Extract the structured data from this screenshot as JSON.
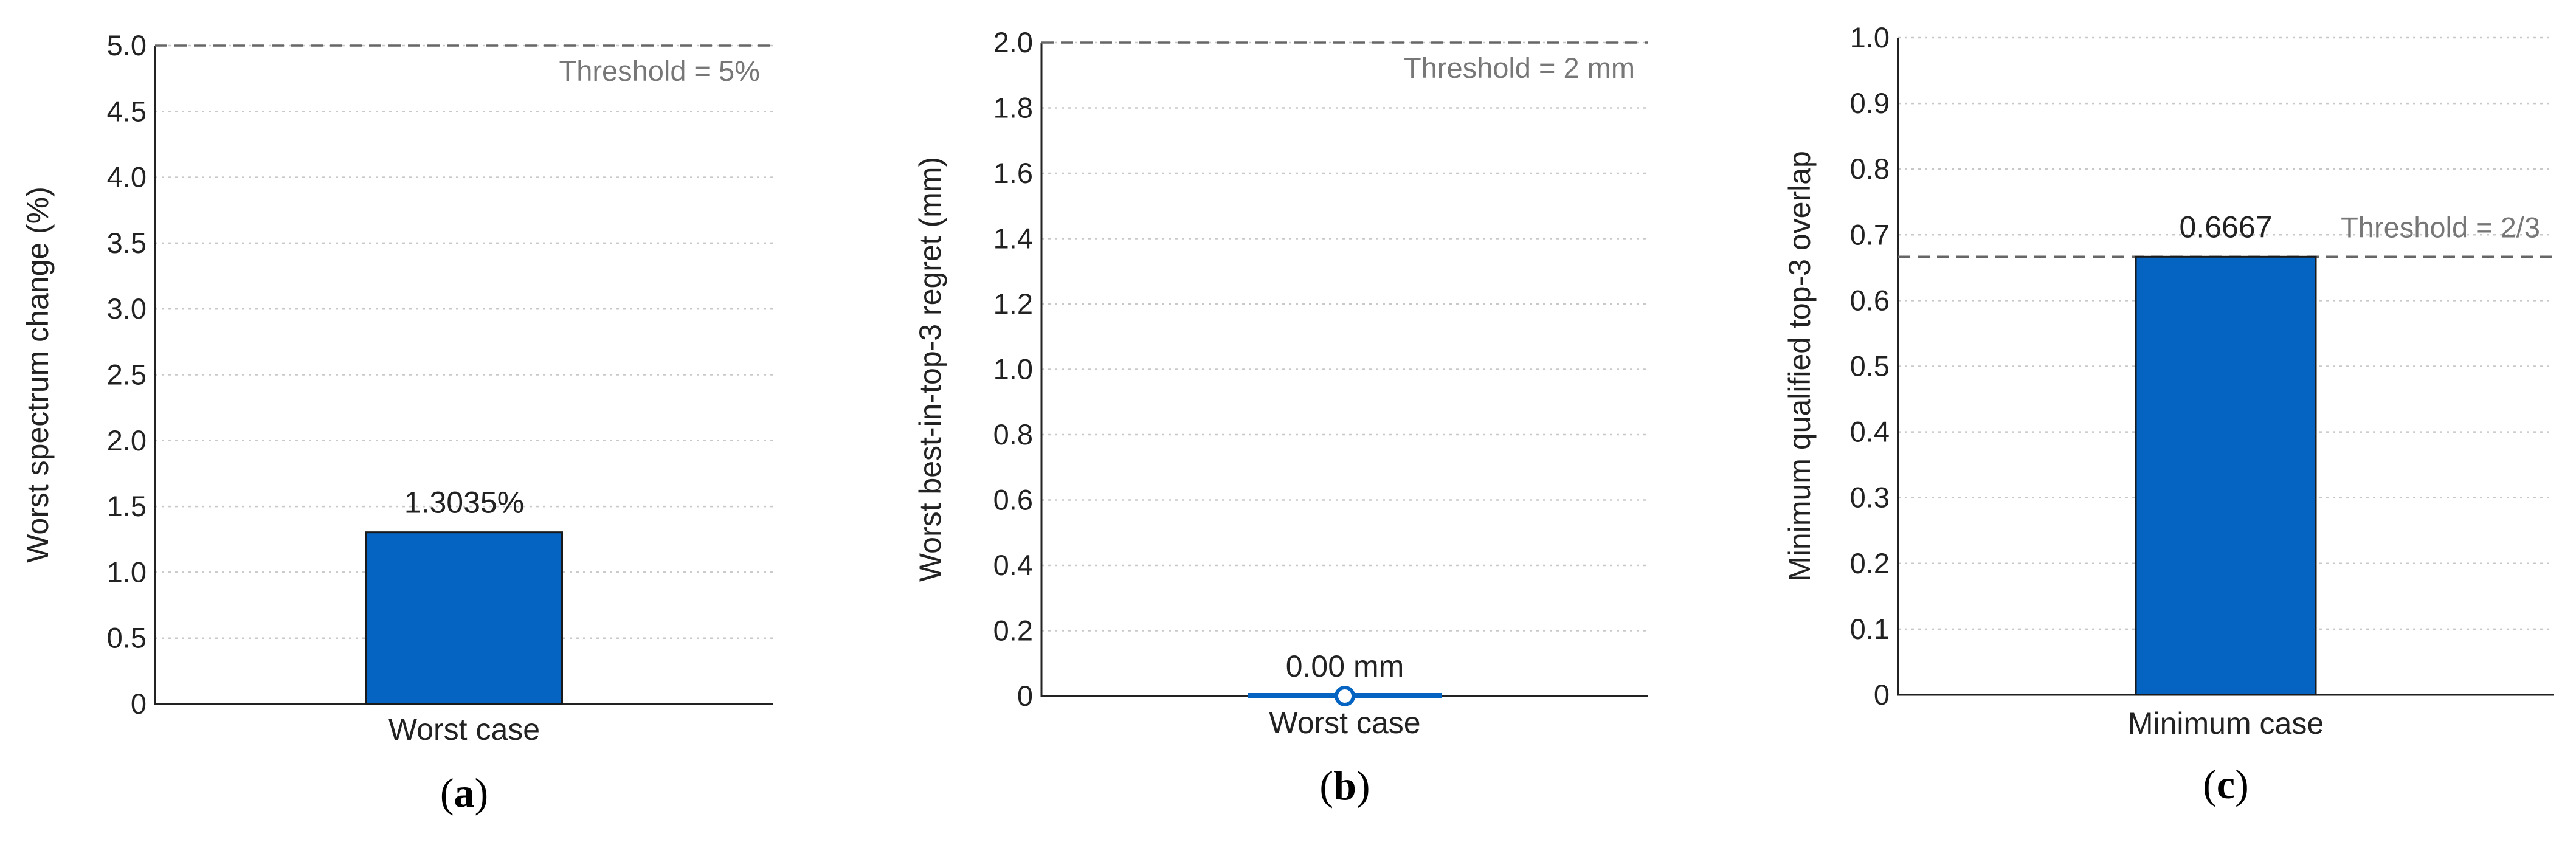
{
  "colors": {
    "bar": "#0563c1",
    "bar_edge": "#1a1a1a",
    "threshold": "#666666",
    "grid": "#c8c8c8"
  },
  "chart_data": [
    {
      "panel": "a",
      "type": "bar",
      "categories": [
        "Worst case"
      ],
      "values": [
        1.3035
      ],
      "data_labels": [
        "1.3035%"
      ],
      "ylabel": "Worst spectrum change (%)",
      "xlabel": "",
      "ylim": [
        0,
        5
      ],
      "yticks": [
        "0",
        "0.5",
        "1.0",
        "1.5",
        "2.0",
        "2.5",
        "3.0",
        "3.5",
        "4.0",
        "4.5",
        "5.0"
      ],
      "threshold": {
        "value": 5,
        "label": "Threshold = 5%"
      },
      "grid": true
    },
    {
      "panel": "b",
      "type": "bar",
      "categories": [
        "Worst case"
      ],
      "values": [
        0
      ],
      "data_labels": [
        "0.00 mm"
      ],
      "marker": "circle",
      "ylabel": "Worst best-in-top-3 regret (mm)",
      "xlabel": "",
      "ylim": [
        0,
        2
      ],
      "yticks": [
        "0",
        "0.2",
        "0.4",
        "0.6",
        "0.8",
        "1.0",
        "1.2",
        "1.4",
        "1.6",
        "1.8",
        "2.0"
      ],
      "threshold": {
        "value": 2,
        "label": "Threshold = 2 mm"
      },
      "grid": true
    },
    {
      "panel": "c",
      "type": "bar",
      "categories": [
        "Minimum case"
      ],
      "values": [
        0.6667
      ],
      "data_labels": [
        "0.6667"
      ],
      "ylabel": "Minimum qualified top-3 overlap",
      "xlabel": "",
      "ylim": [
        0,
        1
      ],
      "yticks": [
        "0",
        "0.1",
        "0.2",
        "0.3",
        "0.4",
        "0.5",
        "0.6",
        "0.7",
        "0.8",
        "0.9",
        "1.0"
      ],
      "threshold": {
        "value": 0.6667,
        "label": "Threshold = 2/3"
      },
      "grid": true
    }
  ]
}
